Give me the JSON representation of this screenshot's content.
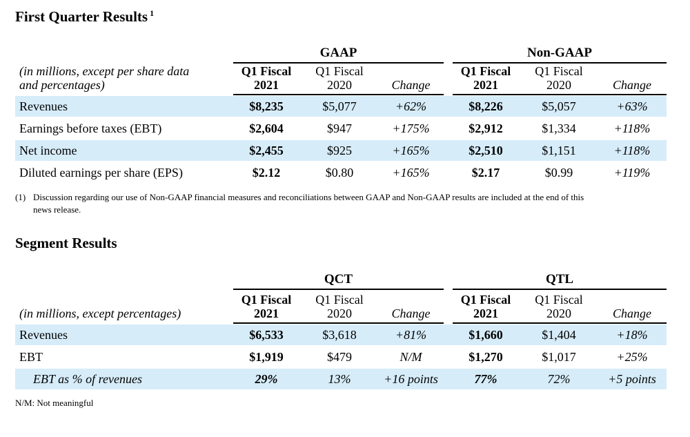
{
  "section1": {
    "title": "First Quarter Results",
    "footnote_mark": "1",
    "subtitle_line1": "(in millions, except per share data",
    "subtitle_line2": "and percentages)",
    "group_left": "GAAP",
    "group_right": "Non-GAAP",
    "col_q1_2021_line1": "Q1 Fiscal",
    "col_q1_2021_line2": "2021",
    "col_q1_2020_line1": "Q1 Fiscal",
    "col_q1_2020_line2": "2020",
    "col_change": "Change",
    "rows": [
      {
        "label": "Revenues",
        "c1": "$8,235",
        "c2": "$5,077",
        "c3": "+62%",
        "c4": "$8,226",
        "c5": "$5,057",
        "c6": "+63%"
      },
      {
        "label": "Earnings before taxes (EBT)",
        "c1": "$2,604",
        "c2": "$947",
        "c3": "+175%",
        "c4": "$2,912",
        "c5": "$1,334",
        "c6": "+118%"
      },
      {
        "label": "Net income",
        "c1": "$2,455",
        "c2": "$925",
        "c3": "+165%",
        "c4": "$2,510",
        "c5": "$1,151",
        "c6": "+118%"
      },
      {
        "label": "Diluted earnings per share (EPS)",
        "c1": "$2.12",
        "c2": "$0.80",
        "c3": "+165%",
        "c4": "$2.17",
        "c5": "$0.99",
        "c6": "+119%"
      }
    ],
    "footnote_num": "(1)",
    "footnote_line1": "Discussion regarding our use of Non-GAAP financial measures and reconciliations between GAAP and Non-GAAP results are included at the end of this",
    "footnote_line2": "news release."
  },
  "section2": {
    "title": "Segment Results",
    "subtitle": "(in millions, except percentages)",
    "group_left": "QCT",
    "group_right": "QTL",
    "col_q1_2021_line1": "Q1 Fiscal",
    "col_q1_2021_line2": "2021",
    "col_q1_2020_line1": "Q1 Fiscal",
    "col_q1_2020_line2": "2020",
    "col_change": "Change",
    "rows": [
      {
        "label": "Revenues",
        "c1": "$6,533",
        "c2": "$3,618",
        "c3": "+81%",
        "c4": "$1,660",
        "c5": "$1,404",
        "c6": "+18%"
      },
      {
        "label": "EBT",
        "c1": "$1,919",
        "c2": "$479",
        "c3": "N/M",
        "c4": "$1,270",
        "c5": "$1,017",
        "c6": "+25%"
      },
      {
        "label": "EBT as % of revenues",
        "c1": "29%",
        "c2": "13%",
        "c3": "+16 points",
        "c4": "77%",
        "c5": "72%",
        "c6": "+5 points"
      }
    ],
    "note": "N/M: Not meaningful"
  }
}
